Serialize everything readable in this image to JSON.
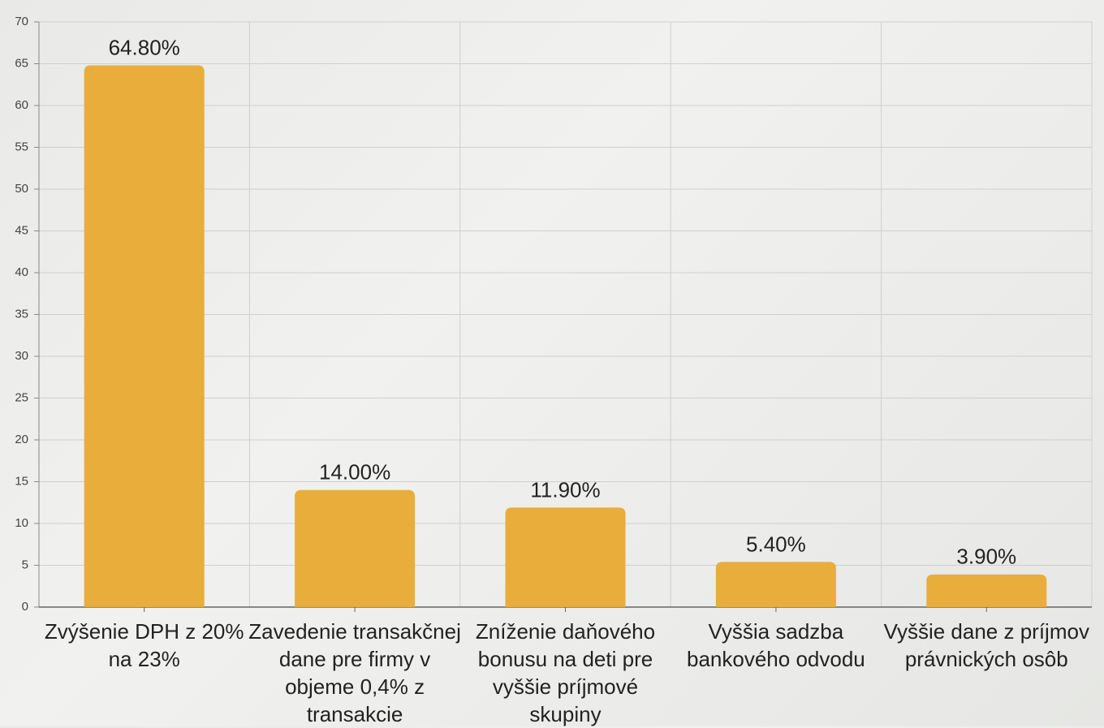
{
  "chart_data": {
    "type": "bar",
    "categories": [
      "Zvýšenie DPH z 20% na 23%",
      "Zavedenie transakčnej dane pre firmy v objeme 0,4% z transakcie",
      "Zníženie daňového bonusu na deti pre vyššie príjmové skupiny",
      "Vyššia sadzba bankového odvodu",
      "Vyššie dane z príjmov právnických osôb"
    ],
    "values": [
      64.8,
      14.0,
      11.9,
      5.4,
      3.9
    ],
    "value_labels": [
      "64.80%",
      "14.00%",
      "11.90%",
      "5.40%",
      "3.90%"
    ],
    "color": "#e8ad3b",
    "ylim": [
      0,
      70
    ],
    "yticks": [
      0,
      5,
      10,
      15,
      20,
      25,
      30,
      35,
      40,
      45,
      50,
      55,
      60,
      65,
      70
    ],
    "grid": true
  }
}
